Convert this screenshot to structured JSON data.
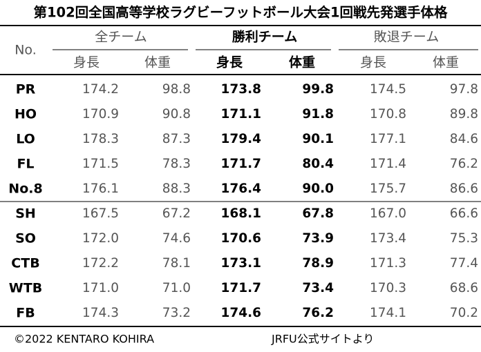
{
  "title": "第102回全国高等学校ラグビーフットボール大会1回戦先発選手体格",
  "table": {
    "no_header": "No.",
    "groups": [
      "全チーム",
      "勝利チーム",
      "敗退チーム"
    ],
    "subheaders": [
      "身長",
      "体重",
      "身長",
      "体重",
      "身長",
      "体重"
    ],
    "rows": [
      [
        "PR",
        "174.2",
        "98.8",
        "173.8",
        "99.8",
        "174.5",
        "97.8"
      ],
      [
        "HO",
        "170.9",
        "90.8",
        "171.1",
        "91.8",
        "170.8",
        "89.8"
      ],
      [
        "LO",
        "178.3",
        "87.3",
        "179.4",
        "90.1",
        "177.1",
        "84.6"
      ],
      [
        "FL",
        "171.5",
        "78.3",
        "171.7",
        "80.4",
        "171.4",
        "76.2"
      ],
      [
        "No.8",
        "176.1",
        "88.3",
        "176.4",
        "90.0",
        "175.7",
        "86.6"
      ],
      [
        "SH",
        "167.5",
        "67.2",
        "168.1",
        "67.8",
        "167.0",
        "66.6"
      ],
      [
        "SO",
        "172.0",
        "74.6",
        "170.6",
        "73.9",
        "173.4",
        "75.3"
      ],
      [
        "CTB",
        "172.2",
        "78.1",
        "173.1",
        "78.9",
        "171.3",
        "77.4"
      ],
      [
        "WTB",
        "171.0",
        "71.0",
        "171.7",
        "73.4",
        "170.3",
        "68.6"
      ],
      [
        "FB",
        "174.3",
        "73.2",
        "174.6",
        "76.2",
        "174.1",
        "70.2"
      ]
    ]
  },
  "footer": {
    "copyright": "©2022 KENTARO KOHIRA",
    "source": "JRFU公式サイトより"
  }
}
